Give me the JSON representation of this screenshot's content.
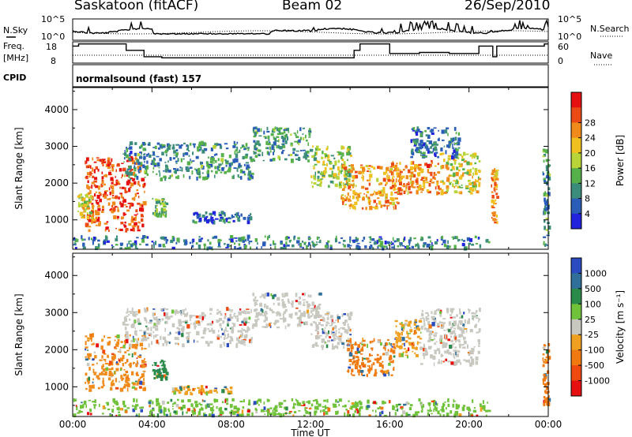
{
  "header": {
    "station": "Saskatoon (fitACF)",
    "beam": "Beam 02",
    "date": "26/Sep/2010"
  },
  "chart_data": [
    {
      "type": "line",
      "name": "noise",
      "left_label": "N.Sky",
      "right_label": "N.Search",
      "left_ticks": [
        "10^5",
        "10^0"
      ],
      "right_ticks": [
        "10^5",
        "10^0"
      ]
    },
    {
      "type": "line",
      "name": "frequency",
      "left_label_top": "Freq.",
      "left_label_bottom": "[MHz]",
      "right_label": "Nave",
      "left_ticks": [
        "18",
        "8"
      ],
      "right_ticks": [
        "60",
        "0"
      ],
      "freq_steps": [
        [
          0,
          16
        ],
        [
          0.3,
          17
        ],
        [
          2.7,
          14
        ],
        [
          3.6,
          11
        ],
        [
          4.5,
          10.5
        ],
        [
          14.2,
          14
        ],
        [
          14.5,
          17
        ],
        [
          16.0,
          12.5
        ],
        [
          17.5,
          13
        ],
        [
          19.0,
          12.5
        ],
        [
          20.5,
          16
        ],
        [
          21.2,
          11
        ],
        [
          21.4,
          16
        ],
        [
          23.8,
          17
        ]
      ]
    },
    {
      "type": "label",
      "name": "cpid",
      "label": "CPID",
      "text": "normalsound (fast) 157"
    },
    {
      "type": "heatmap",
      "name": "power",
      "ylabel": "Slant Range [km]",
      "yticks": [
        1000,
        2000,
        3000,
        4000
      ],
      "ylim": [
        200,
        4600
      ],
      "xlim": [
        0,
        24
      ],
      "colorbar_label": "Power [dB]",
      "colorbar_ticks": [
        4,
        8,
        12,
        16,
        20,
        24,
        28
      ],
      "colorbar_colors": [
        "#2222dd",
        "#2a5db8",
        "#3b8c7a",
        "#56b04a",
        "#b9d438",
        "#f0c020",
        "#f08a1a",
        "#ec4a14",
        "#e61010"
      ],
      "blobs": [
        {
          "t0": 0.6,
          "t1": 3.6,
          "r0": 700,
          "r1": 2700,
          "level": 0.85
        },
        {
          "t0": 0.2,
          "t1": 1.0,
          "r0": 1000,
          "r1": 1700,
          "level": 0.55
        },
        {
          "t0": 2.5,
          "t1": 9.0,
          "r0": 2100,
          "r1": 3100,
          "level": 0.28
        },
        {
          "t0": 9.0,
          "t1": 12.0,
          "r0": 2600,
          "r1": 3500,
          "level": 0.3
        },
        {
          "t0": 4.0,
          "t1": 4.7,
          "r0": 1100,
          "r1": 1600,
          "level": 0.4
        },
        {
          "t0": 12.0,
          "t1": 14.0,
          "r0": 1900,
          "r1": 3000,
          "level": 0.45
        },
        {
          "t0": 13.5,
          "t1": 16.5,
          "r0": 1300,
          "r1": 2500,
          "level": 0.7
        },
        {
          "t0": 16.0,
          "t1": 18.5,
          "r0": 1700,
          "r1": 2600,
          "level": 0.72
        },
        {
          "t0": 18.5,
          "t1": 20.5,
          "r0": 1700,
          "r1": 2800,
          "level": 0.55
        },
        {
          "t0": 17.0,
          "t1": 19.5,
          "r0": 2700,
          "r1": 3500,
          "level": 0.25
        },
        {
          "t0": 21.1,
          "t1": 21.4,
          "r0": 900,
          "r1": 2400,
          "level": 0.7
        },
        {
          "t0": 23.7,
          "t1": 24.0,
          "r0": 300,
          "r1": 3100,
          "level": 0.3
        },
        {
          "t0": 6.0,
          "t1": 9.0,
          "r0": 900,
          "r1": 1200,
          "level": 0.2
        },
        {
          "t0": 0.0,
          "t1": 21.0,
          "r0": 220,
          "r1": 550,
          "level": 0.25
        }
      ]
    },
    {
      "type": "heatmap",
      "name": "velocity",
      "ylabel": "Slant Range [km]",
      "yticks": [
        1000,
        2000,
        3000,
        4000
      ],
      "ylim": [
        200,
        4600
      ],
      "xlim": [
        0,
        24
      ],
      "xticks": [
        "00:00",
        "04:00",
        "08:00",
        "12:00",
        "16:00",
        "20:00",
        "00:00"
      ],
      "xlabel": "Time UT",
      "colorbar_label": "Velocity [m s⁻¹]",
      "colorbar_ticks": [
        "1000",
        "500",
        "100",
        "25",
        "-25",
        "-100",
        "-500",
        "-1000"
      ],
      "colorbar_colors": [
        "#2b4cc0",
        "#2f6f9a",
        "#2a8a4a",
        "#6fc23a",
        "#c8c8c0",
        "#f0a020",
        "#f07a10",
        "#ee4a10",
        "#e61010"
      ],
      "blobs": [
        {
          "t0": 0.6,
          "t1": 3.6,
          "r0": 900,
          "r1": 2400,
          "vel": "#f08a1a"
        },
        {
          "t0": 2.5,
          "t1": 9.0,
          "r0": 2100,
          "r1": 3100,
          "vel": "#c8c8c0"
        },
        {
          "t0": 9.0,
          "t1": 12.5,
          "r0": 2600,
          "r1": 3500,
          "vel": "#c8c8c0"
        },
        {
          "t0": 4.0,
          "t1": 4.7,
          "r0": 1200,
          "r1": 1700,
          "vel": "#2a8a4a"
        },
        {
          "t0": 12.0,
          "t1": 14.0,
          "r0": 2000,
          "r1": 3000,
          "vel": "#c8c8c0"
        },
        {
          "t0": 13.8,
          "t1": 16.2,
          "r0": 1300,
          "r1": 2300,
          "vel": "#f07a10"
        },
        {
          "t0": 16.2,
          "t1": 17.5,
          "r0": 1800,
          "r1": 2800,
          "vel": "#f0a020"
        },
        {
          "t0": 17.5,
          "t1": 20.5,
          "r0": 1600,
          "r1": 3100,
          "vel": "#c8c8c0"
        },
        {
          "t0": 0.0,
          "t1": 21.0,
          "r0": 220,
          "r1": 650,
          "vel": "#6fc23a"
        },
        {
          "t0": 5.0,
          "t1": 8.0,
          "r0": 800,
          "r1": 1000,
          "vel": "#f0a020"
        },
        {
          "t0": 23.7,
          "t1": 24.0,
          "r0": 500,
          "r1": 2200,
          "vel": "#f07a10"
        }
      ]
    }
  ]
}
